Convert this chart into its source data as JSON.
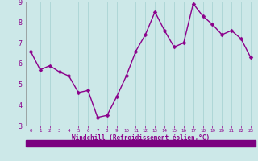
{
  "x": [
    0,
    1,
    2,
    3,
    4,
    5,
    6,
    7,
    8,
    9,
    10,
    11,
    12,
    13,
    14,
    15,
    16,
    17,
    18,
    19,
    20,
    21,
    22,
    23
  ],
  "y": [
    6.6,
    5.7,
    5.9,
    5.6,
    5.4,
    4.6,
    4.7,
    3.4,
    3.5,
    4.4,
    5.4,
    6.6,
    7.4,
    8.5,
    7.6,
    6.8,
    7.0,
    8.9,
    8.3,
    7.9,
    7.4,
    7.6,
    7.2,
    6.3
  ],
  "line_color": "#8B008B",
  "marker_color": "#8B008B",
  "bg_color": "#cce8e8",
  "grid_color": "#aad4d4",
  "xlabel": "Windchill (Refroidissement éolien,°C)",
  "xlabel_color": "#8B008B",
  "tick_color": "#8B008B",
  "ylim": [
    3,
    9
  ],
  "yticks": [
    3,
    4,
    5,
    6,
    7,
    8,
    9
  ],
  "xticks": [
    0,
    1,
    2,
    3,
    4,
    5,
    6,
    7,
    8,
    9,
    10,
    11,
    12,
    13,
    14,
    15,
    16,
    17,
    18,
    19,
    20,
    21,
    22,
    23
  ],
  "marker_size": 2.5,
  "line_width": 1.0,
  "bottom_bar_color": "#7B0080",
  "spine_color": "#888888"
}
